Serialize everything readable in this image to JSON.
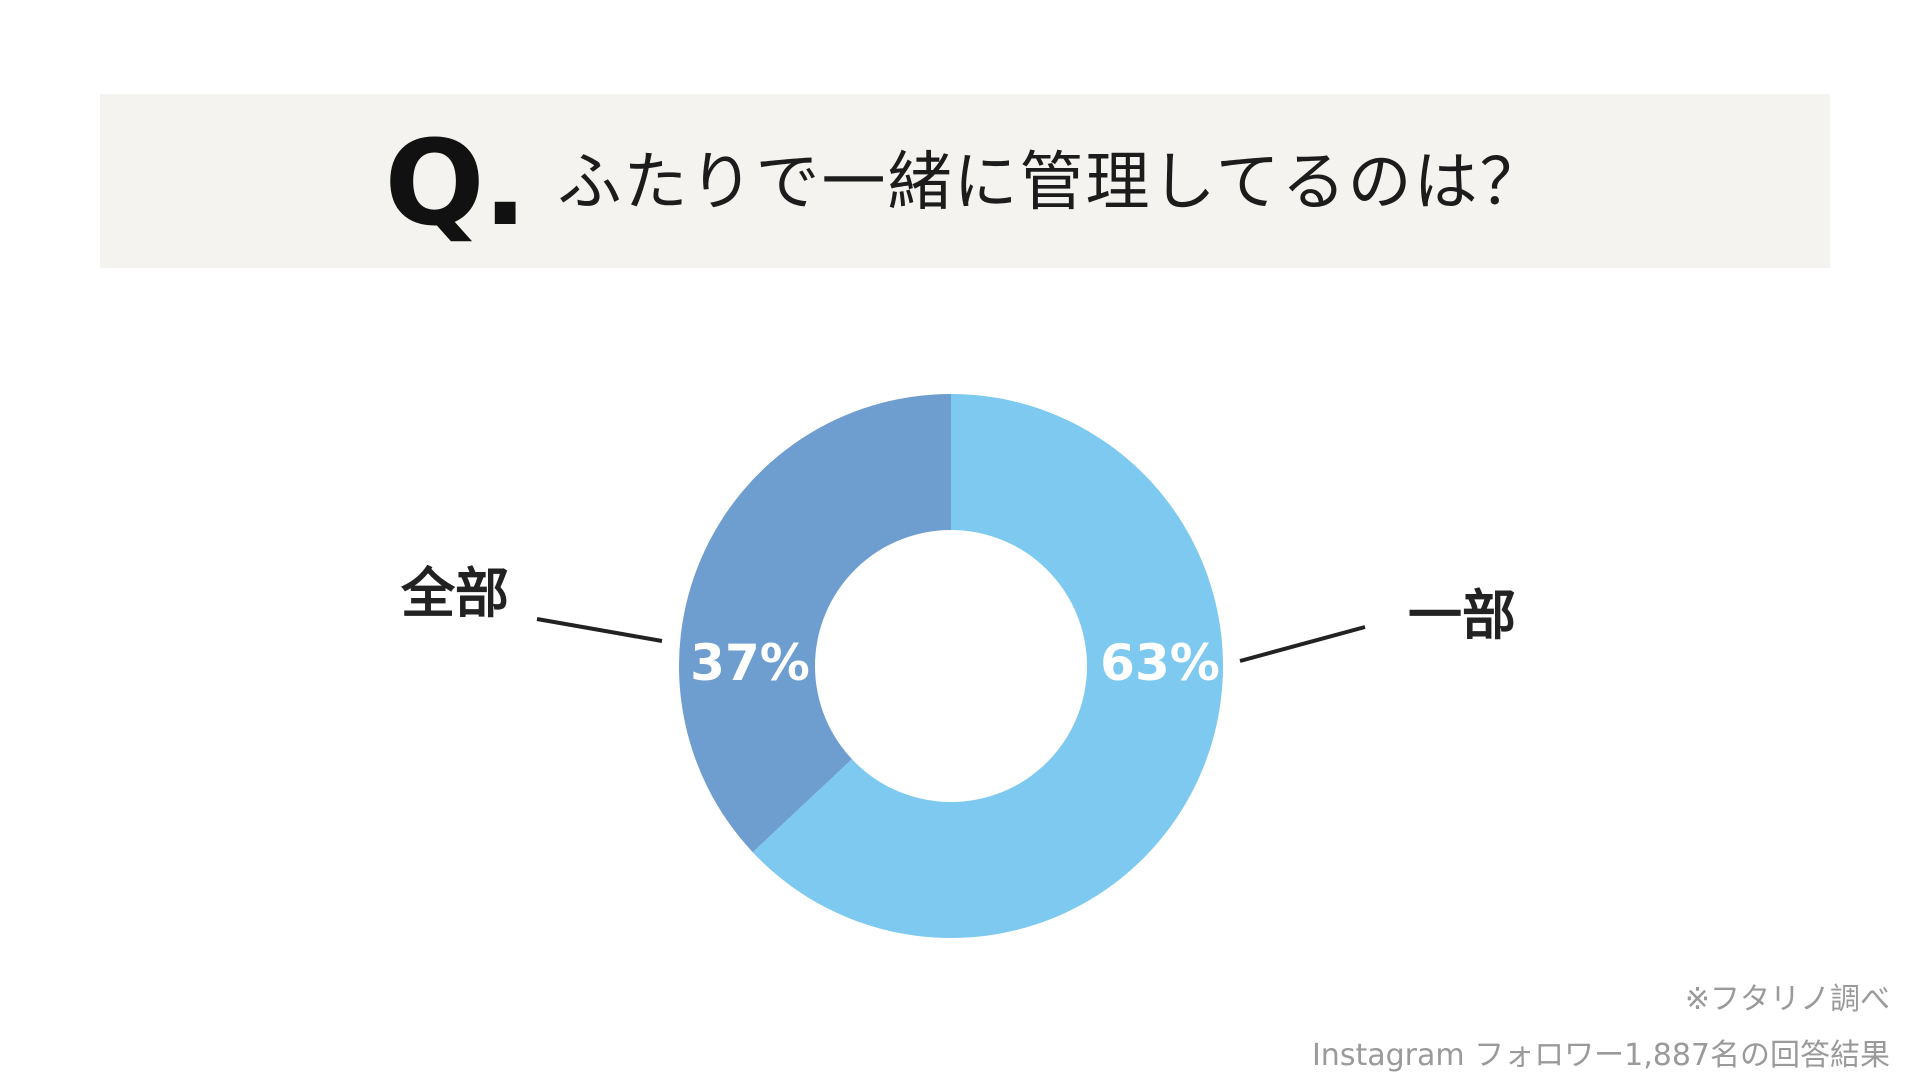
{
  "header": {
    "q_mark": "Q",
    "q_dot": ".",
    "question": "ふたりで一緒に管理してるのは？"
  },
  "chart_data": {
    "type": "pie",
    "subtype": "donut",
    "title": "Q. ふたりで一緒に管理してるのは？",
    "slices": [
      {
        "label": "一部",
        "value": 63,
        "display": "63%",
        "color": "#7dc9f0"
      },
      {
        "label": "全部",
        "value": 37,
        "display": "37%",
        "color": "#6e9dd0"
      }
    ],
    "start": "top",
    "direction": "clockwise"
  },
  "notes": {
    "source": "※フタリノ調べ",
    "sample": "Instagram フォロワー1,887名の回答結果"
  },
  "colors": {
    "header_bg": "#f4f3ef",
    "center_hole": "#ffffff",
    "leader_line": "#222222",
    "note_text": "#9a9a9a"
  }
}
